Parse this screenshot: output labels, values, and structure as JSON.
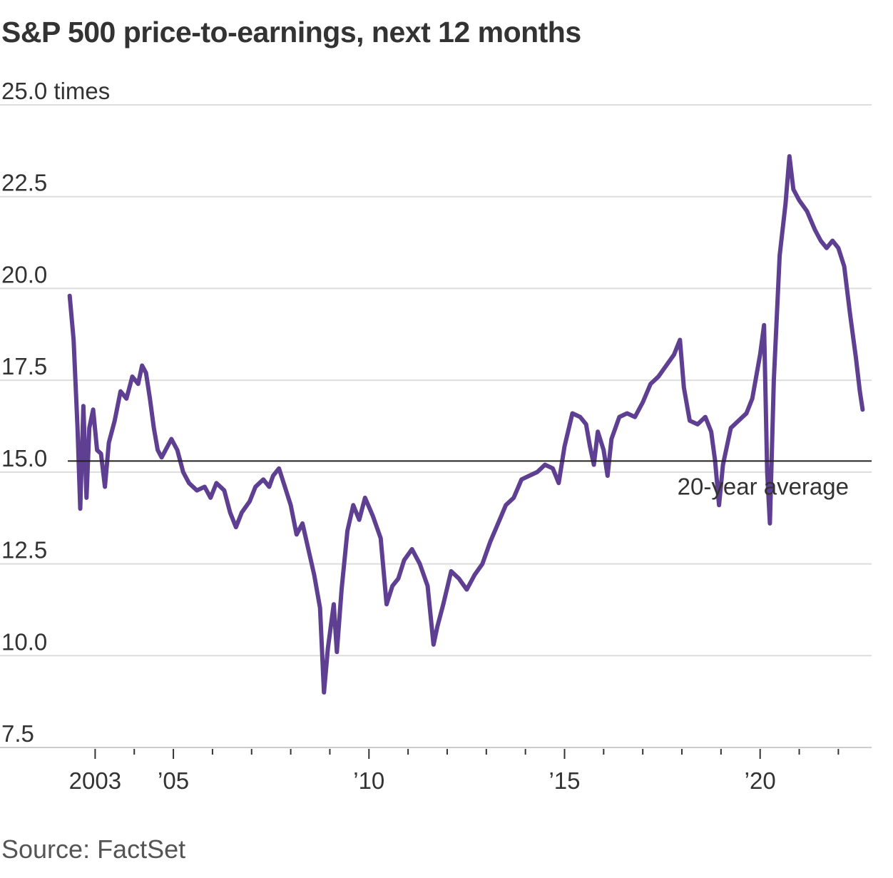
{
  "header": {
    "title": "S&P 500 price-to-earnings, next 12 months"
  },
  "footer": {
    "source": "Source: FactSet"
  },
  "colors": {
    "line": "#5e3f91",
    "reference": "#222222",
    "grid": "#dddddd"
  },
  "chart_data": {
    "type": "line",
    "title": "S&P 500 price-to-earnings, next 12 months",
    "ylabel": "",
    "y_unit_label": "times",
    "ylim": [
      7.5,
      25.0
    ],
    "xlim": [
      2002.3,
      2022.85
    ],
    "yticks": [
      {
        "value": 25.0,
        "label": "25.0 times"
      },
      {
        "value": 22.5,
        "label": "22.5"
      },
      {
        "value": 20.0,
        "label": "20.0"
      },
      {
        "value": 17.5,
        "label": "17.5"
      },
      {
        "value": 15.0,
        "label": "15.0"
      },
      {
        "value": 12.5,
        "label": "12.5"
      },
      {
        "value": 10.0,
        "label": "10.0"
      },
      {
        "value": 7.5,
        "label": "7.5"
      }
    ],
    "xticks": [
      2003,
      2004,
      2005,
      2006,
      2007,
      2008,
      2009,
      2010,
      2011,
      2012,
      2013,
      2014,
      2015,
      2016,
      2017,
      2018,
      2019,
      2020,
      2021,
      2022
    ],
    "xtick_labels": [
      {
        "value": 2003,
        "label": "2003"
      },
      {
        "value": 2005,
        "label": "’05"
      },
      {
        "value": 2010,
        "label": "’10"
      },
      {
        "value": 2015,
        "label": "’15"
      },
      {
        "value": 2020,
        "label": "’20"
      }
    ],
    "grid": true,
    "reference_line": {
      "value": 15.3,
      "label": "20-year average"
    },
    "series": [
      {
        "name": "",
        "points": [
          [
            2002.35,
            19.8
          ],
          [
            2002.45,
            18.6
          ],
          [
            2002.55,
            16.2
          ],
          [
            2002.62,
            14.0
          ],
          [
            2002.7,
            16.8
          ],
          [
            2002.78,
            14.3
          ],
          [
            2002.85,
            16.2
          ],
          [
            2002.95,
            16.7
          ],
          [
            2003.05,
            15.6
          ],
          [
            2003.15,
            15.5
          ],
          [
            2003.25,
            14.6
          ],
          [
            2003.35,
            15.8
          ],
          [
            2003.5,
            16.4
          ],
          [
            2003.65,
            17.2
          ],
          [
            2003.8,
            17.0
          ],
          [
            2003.95,
            17.6
          ],
          [
            2004.1,
            17.4
          ],
          [
            2004.2,
            17.9
          ],
          [
            2004.3,
            17.7
          ],
          [
            2004.4,
            17.0
          ],
          [
            2004.5,
            16.2
          ],
          [
            2004.6,
            15.6
          ],
          [
            2004.7,
            15.4
          ],
          [
            2004.8,
            15.6
          ],
          [
            2004.95,
            15.9
          ],
          [
            2005.1,
            15.6
          ],
          [
            2005.25,
            15.0
          ],
          [
            2005.4,
            14.7
          ],
          [
            2005.6,
            14.5
          ],
          [
            2005.8,
            14.6
          ],
          [
            2005.95,
            14.3
          ],
          [
            2006.1,
            14.7
          ],
          [
            2006.3,
            14.5
          ],
          [
            2006.45,
            13.9
          ],
          [
            2006.6,
            13.5
          ],
          [
            2006.75,
            13.9
          ],
          [
            2006.95,
            14.2
          ],
          [
            2007.1,
            14.6
          ],
          [
            2007.3,
            14.8
          ],
          [
            2007.45,
            14.6
          ],
          [
            2007.55,
            14.9
          ],
          [
            2007.7,
            15.1
          ],
          [
            2007.85,
            14.6
          ],
          [
            2008.0,
            14.1
          ],
          [
            2008.15,
            13.3
          ],
          [
            2008.3,
            13.6
          ],
          [
            2008.45,
            12.9
          ],
          [
            2008.6,
            12.2
          ],
          [
            2008.75,
            11.3
          ],
          [
            2008.85,
            9.0
          ],
          [
            2008.95,
            10.2
          ],
          [
            2009.1,
            11.4
          ],
          [
            2009.18,
            10.1
          ],
          [
            2009.3,
            11.8
          ],
          [
            2009.45,
            13.4
          ],
          [
            2009.6,
            14.1
          ],
          [
            2009.75,
            13.7
          ],
          [
            2009.9,
            14.3
          ],
          [
            2010.1,
            13.8
          ],
          [
            2010.3,
            13.2
          ],
          [
            2010.45,
            11.4
          ],
          [
            2010.6,
            11.9
          ],
          [
            2010.75,
            12.1
          ],
          [
            2010.9,
            12.6
          ],
          [
            2011.1,
            12.9
          ],
          [
            2011.3,
            12.5
          ],
          [
            2011.5,
            11.9
          ],
          [
            2011.65,
            10.3
          ],
          [
            2011.75,
            10.8
          ],
          [
            2011.9,
            11.4
          ],
          [
            2012.1,
            12.3
          ],
          [
            2012.3,
            12.1
          ],
          [
            2012.5,
            11.8
          ],
          [
            2012.7,
            12.2
          ],
          [
            2012.9,
            12.5
          ],
          [
            2013.1,
            13.1
          ],
          [
            2013.3,
            13.6
          ],
          [
            2013.5,
            14.1
          ],
          [
            2013.7,
            14.3
          ],
          [
            2013.9,
            14.8
          ],
          [
            2014.1,
            14.9
          ],
          [
            2014.3,
            15.0
          ],
          [
            2014.5,
            15.2
          ],
          [
            2014.7,
            15.1
          ],
          [
            2014.85,
            14.7
          ],
          [
            2015.0,
            15.7
          ],
          [
            2015.2,
            16.6
          ],
          [
            2015.4,
            16.5
          ],
          [
            2015.55,
            16.3
          ],
          [
            2015.65,
            15.7
          ],
          [
            2015.75,
            15.2
          ],
          [
            2015.85,
            16.1
          ],
          [
            2016.0,
            15.6
          ],
          [
            2016.1,
            14.9
          ],
          [
            2016.2,
            15.9
          ],
          [
            2016.4,
            16.5
          ],
          [
            2016.6,
            16.6
          ],
          [
            2016.8,
            16.5
          ],
          [
            2017.0,
            16.9
          ],
          [
            2017.2,
            17.4
          ],
          [
            2017.4,
            17.6
          ],
          [
            2017.6,
            17.9
          ],
          [
            2017.8,
            18.2
          ],
          [
            2017.95,
            18.6
          ],
          [
            2018.05,
            17.3
          ],
          [
            2018.2,
            16.4
          ],
          [
            2018.4,
            16.3
          ],
          [
            2018.6,
            16.5
          ],
          [
            2018.75,
            16.1
          ],
          [
            2018.85,
            15.3
          ],
          [
            2018.95,
            14.1
          ],
          [
            2019.05,
            15.2
          ],
          [
            2019.25,
            16.2
          ],
          [
            2019.45,
            16.4
          ],
          [
            2019.65,
            16.6
          ],
          [
            2019.8,
            17.0
          ],
          [
            2020.0,
            18.2
          ],
          [
            2020.1,
            19.0
          ],
          [
            2020.18,
            15.0
          ],
          [
            2020.25,
            13.6
          ],
          [
            2020.35,
            17.5
          ],
          [
            2020.5,
            20.9
          ],
          [
            2020.65,
            22.3
          ],
          [
            2020.75,
            23.6
          ],
          [
            2020.85,
            22.7
          ],
          [
            2021.0,
            22.4
          ],
          [
            2021.2,
            22.1
          ],
          [
            2021.4,
            21.6
          ],
          [
            2021.55,
            21.3
          ],
          [
            2021.7,
            21.1
          ],
          [
            2021.85,
            21.3
          ],
          [
            2022.0,
            21.1
          ],
          [
            2022.15,
            20.6
          ],
          [
            2022.3,
            19.3
          ],
          [
            2022.45,
            18.1
          ],
          [
            2022.55,
            17.2
          ],
          [
            2022.62,
            16.7
          ]
        ]
      }
    ]
  }
}
